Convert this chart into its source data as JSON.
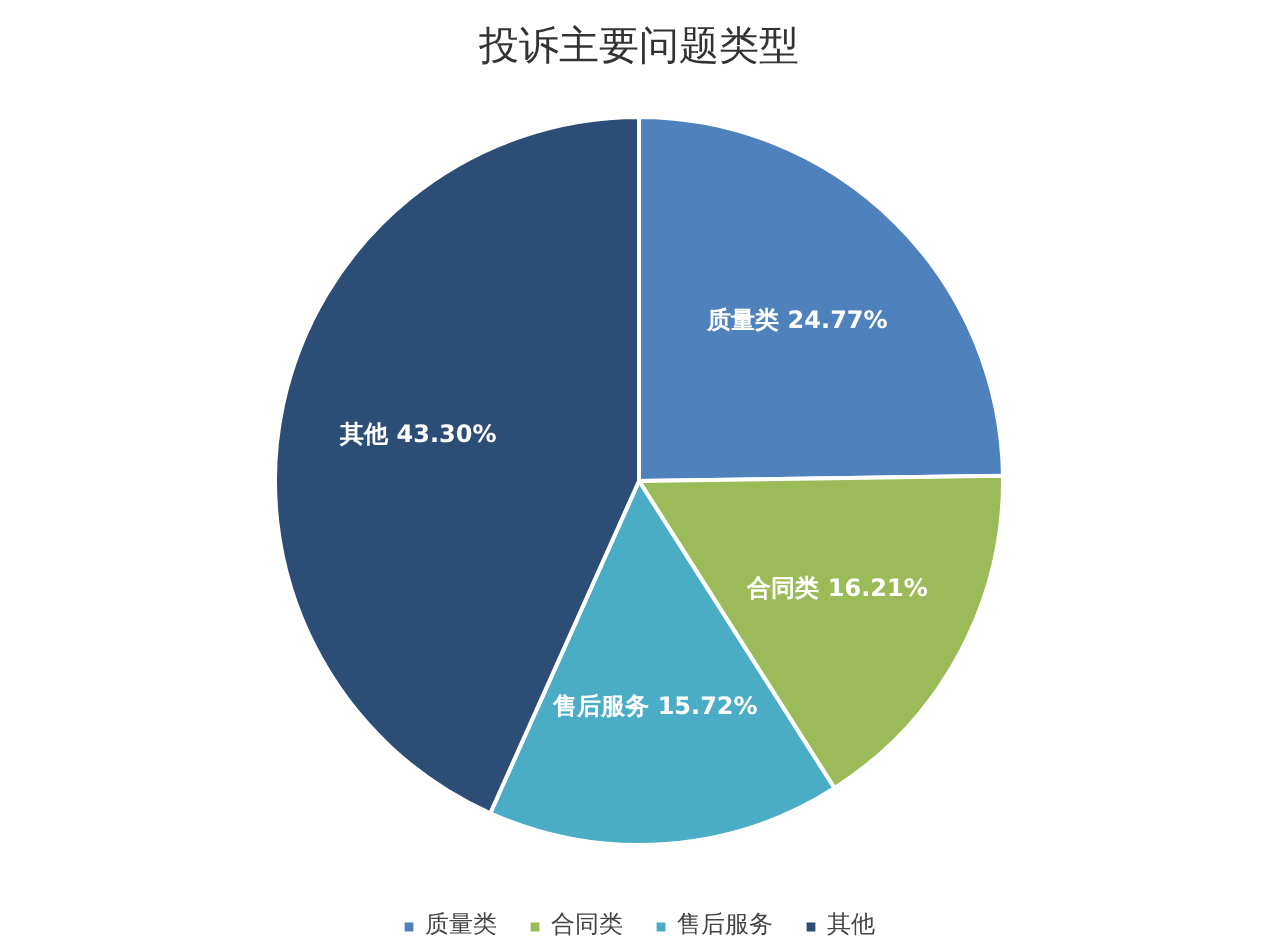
{
  "chart_data": {
    "type": "pie",
    "title": "投诉主要问题类型",
    "categories": [
      "质量类",
      "合同类",
      "售后服务",
      "其他"
    ],
    "values": [
      24.77,
      16.21,
      15.72,
      43.3
    ],
    "value_labels": [
      "24.77%",
      "16.21%",
      "15.72%",
      "43.30%"
    ],
    "colors": [
      "#4f81bd",
      "#9bbb59",
      "#4bacc6",
      "#2c4d75"
    ],
    "legend": "bottom"
  }
}
